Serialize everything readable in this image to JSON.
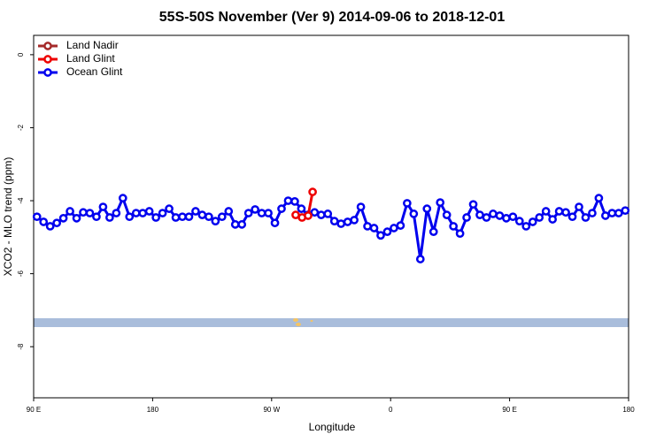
{
  "chart_data": {
    "type": "line",
    "title": "55S-50S November (Ver 9)   2014-09-06 to 2018-12-01",
    "xlabel": "Longitude",
    "ylabel": "XCO2 - MLO trend (ppm)",
    "xlim": [
      90,
      540
    ],
    "xticks": [
      {
        "value": 90,
        "label": "90 E"
      },
      {
        "value": 180,
        "label": "180"
      },
      {
        "value": 270,
        "label": "90 W"
      },
      {
        "value": 360,
        "label": "0"
      },
      {
        "value": 450,
        "label": "90 E"
      },
      {
        "value": 540,
        "label": "180"
      }
    ],
    "ylim": [
      -9.4,
      0.53
    ],
    "yticks": [
      0,
      -2,
      -4,
      -6,
      -8
    ],
    "legend": "top-left",
    "series": [
      {
        "name": "Land Nadir",
        "color": "#a52a2a",
        "x": [],
        "values": []
      },
      {
        "name": "Land Glint",
        "color": "#ee0000",
        "x": [
          288.2,
          293,
          297.6,
          301
        ],
        "values": [
          -4.39,
          -4.46,
          -4.41,
          -3.76
        ]
      },
      {
        "name": "Ocean Glint",
        "color": "#0000ee",
        "x": [
          92.5,
          97.5,
          102.5,
          107.5,
          112.5,
          117.5,
          122.5,
          127.5,
          132.5,
          137.5,
          142.5,
          147.5,
          152.5,
          157.5,
          162.5,
          167.5,
          172.5,
          177.5,
          182.5,
          187.5,
          192.5,
          197.5,
          202.5,
          207.5,
          212.5,
          217.5,
          222.5,
          227.5,
          232.5,
          237.5,
          242.5,
          247.5,
          252.5,
          257.5,
          262.5,
          267.5,
          272.5,
          277.5,
          282.5,
          287.5,
          292.5,
          297.5,
          302.5,
          307.5,
          312.5,
          317.5,
          322.5,
          327.5,
          332.5,
          337.5,
          342.5,
          347.5,
          352.5,
          357.5,
          362.5,
          367.5,
          372.5,
          377.5,
          382.5,
          387.5,
          392.5,
          397.5,
          402.5,
          407.5,
          412.5,
          417.5,
          422.5,
          427.5,
          432.5,
          437.5,
          442.5,
          447.5,
          452.5,
          457.5,
          462.5,
          467.5,
          472.5,
          477.5,
          482.5,
          487.5,
          492.5,
          497.5,
          502.5,
          507.5,
          512.5,
          517.5,
          522.5,
          527.5,
          532.5,
          537.5
        ],
        "values": [
          -4.44,
          -4.58,
          -4.7,
          -4.61,
          -4.48,
          -4.29,
          -4.48,
          -4.32,
          -4.34,
          -4.44,
          -4.17,
          -4.46,
          -4.34,
          -3.93,
          -4.44,
          -4.34,
          -4.34,
          -4.29,
          -4.46,
          -4.34,
          -4.22,
          -4.46,
          -4.44,
          -4.44,
          -4.29,
          -4.39,
          -4.44,
          -4.56,
          -4.44,
          -4.29,
          -4.65,
          -4.65,
          -4.34,
          -4.24,
          -4.34,
          -4.34,
          -4.61,
          -4.22,
          -4.0,
          -4.02,
          -4.22,
          -4.39,
          -4.32,
          -4.39,
          -4.36,
          -4.56,
          -4.63,
          -4.58,
          -4.53,
          -4.17,
          -4.7,
          -4.75,
          -4.95,
          -4.85,
          -4.75,
          -4.68,
          -4.07,
          -4.36,
          -5.6,
          -4.22,
          -4.85,
          -4.05,
          -4.39,
          -4.7,
          -4.9,
          -4.46,
          -4.1,
          -4.39,
          -4.46,
          -4.36,
          -4.41,
          -4.48,
          -4.44,
          -4.56,
          -4.7,
          -4.58,
          -4.46,
          -4.29,
          -4.51,
          -4.29,
          -4.32,
          -4.44,
          -4.17,
          -4.46,
          -4.34,
          -3.93,
          -4.41,
          -4.34,
          -4.34,
          -4.27
        ]
      }
    ]
  }
}
